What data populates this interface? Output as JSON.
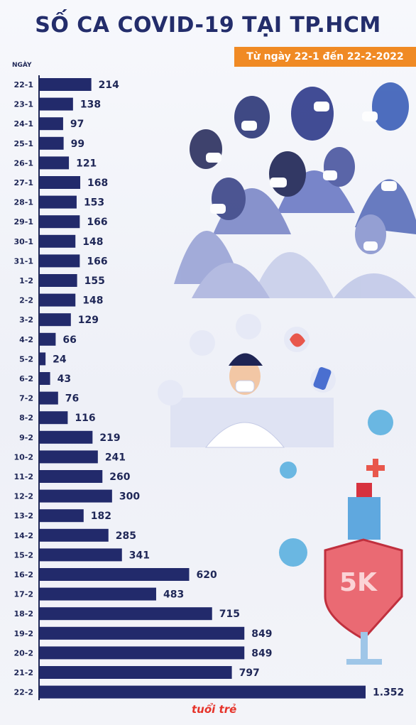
{
  "header": {
    "title": "SỐ CA COVID-19 TẠI TP.HCM",
    "subtitle": "Từ ngày 22-1 đến 22-2-2022",
    "axis_label": "NGÀY"
  },
  "brand": {
    "logo_text": "tuổi trẻ"
  },
  "illustration": {
    "badge_text": "5K"
  },
  "colors": {
    "bar": "#222a6b",
    "title": "#232d6b",
    "subtitle_bg": "#f08a24",
    "brand": "#e6332a"
  },
  "chart_data": {
    "type": "bar",
    "orientation": "horizontal",
    "categories": [
      "22-1",
      "23-1",
      "24-1",
      "25-1",
      "26-1",
      "27-1",
      "28-1",
      "29-1",
      "30-1",
      "31-1",
      "1-2",
      "2-2",
      "3-2",
      "4-2",
      "5-2",
      "6-2",
      "7-2",
      "8-2",
      "9-2",
      "10-2",
      "11-2",
      "12-2",
      "13-2",
      "14-2",
      "15-2",
      "16-2",
      "17-2",
      "18-2",
      "19-2",
      "20-2",
      "21-2",
      "22-2"
    ],
    "values": [
      214,
      138,
      97,
      99,
      121,
      168,
      153,
      166,
      148,
      166,
      155,
      148,
      129,
      66,
      24,
      43,
      76,
      116,
      219,
      241,
      260,
      300,
      182,
      285,
      341,
      620,
      483,
      715,
      849,
      849,
      797,
      1352
    ],
    "value_labels": [
      "214",
      "138",
      "97",
      "99",
      "121",
      "168",
      "153",
      "166",
      "148",
      "166",
      "155",
      "148",
      "129",
      "66",
      "24",
      "43",
      "76",
      "116",
      "219",
      "241",
      "260",
      "300",
      "182",
      "285",
      "341",
      "620",
      "483",
      "715",
      "849",
      "849",
      "797",
      "1.352"
    ],
    "xlim": [
      0,
      1352
    ],
    "grid": false,
    "legend": "none"
  }
}
